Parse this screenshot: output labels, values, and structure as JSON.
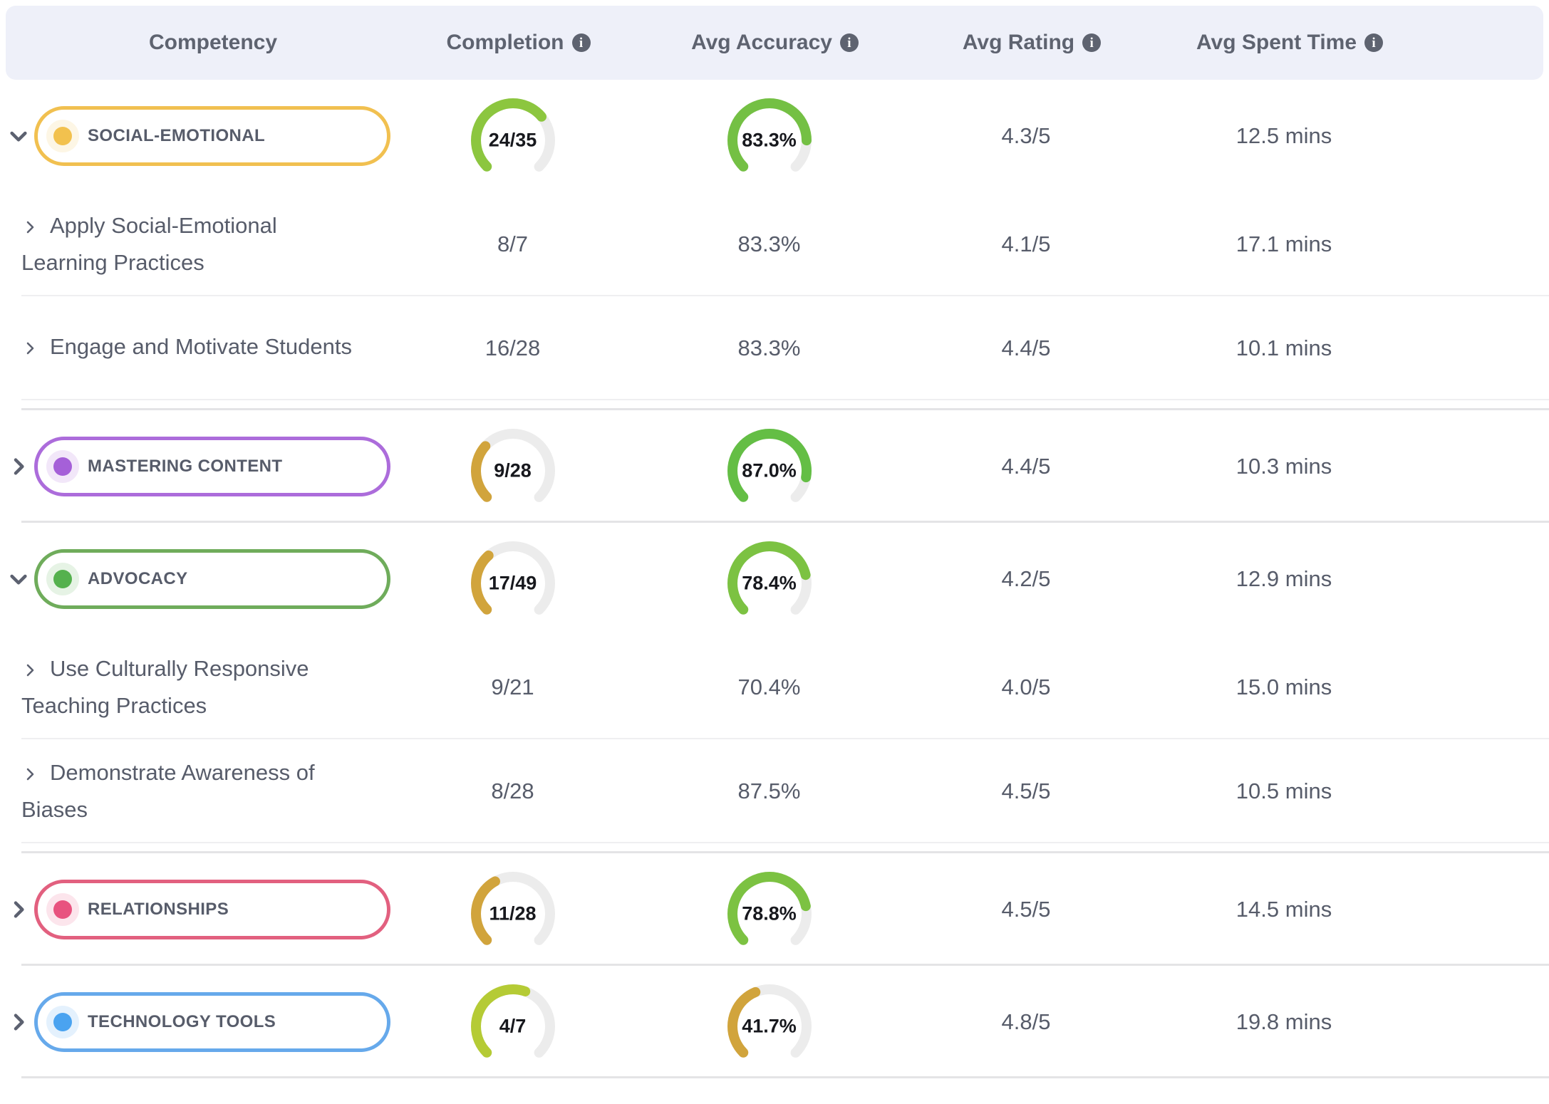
{
  "table": {
    "columns": [
      {
        "label": "Competency",
        "has_info": false
      },
      {
        "label": "Completion",
        "has_info": true
      },
      {
        "label": "Avg Accuracy",
        "has_info": true
      },
      {
        "label": "Avg Rating",
        "has_info": true
      },
      {
        "label": "Avg Spent Time",
        "has_info": true
      }
    ],
    "colors": {
      "header_bg": "#EEF0F9",
      "header_text": "#5E6370",
      "body_text": "#575C6A",
      "gauge_track": "#ECECEC",
      "gauge_green": "#74C044",
      "gauge_yellow_green": "#8CC63F",
      "gauge_lime": "#B5CB35",
      "gauge_gold": "#D1A43C"
    },
    "sections": [
      {
        "competency": {
          "label": "SOCIAL-EMOTIONAL",
          "color": "#F1C050",
          "dot_color": "#F2C14E",
          "expanded": true
        },
        "completion": {
          "text": "24/35",
          "fraction": 0.686,
          "color": "#8CC63F"
        },
        "accuracy": {
          "text": "83.3%",
          "fraction": 0.833,
          "color": "#74C044"
        },
        "rating": "4.3/5",
        "time": "12.5 mins",
        "children": [
          {
            "label": "Apply Social-Emotional Learning Practices",
            "completion": "8/7",
            "accuracy": "83.3%",
            "rating": "4.1/5",
            "time": "17.1 mins"
          },
          {
            "label": "Engage and Motivate Students",
            "completion": "16/28",
            "accuracy": "83.3%",
            "rating": "4.4/5",
            "time": "10.1 mins"
          }
        ]
      },
      {
        "competency": {
          "label": "MASTERING CONTENT",
          "color": "#AC6CDB",
          "dot_color": "#A560D8",
          "expanded": false
        },
        "completion": {
          "text": "9/28",
          "fraction": 0.321,
          "color": "#D1A43C"
        },
        "accuracy": {
          "text": "87.0%",
          "fraction": 0.87,
          "color": "#64BE45"
        },
        "rating": "4.4/5",
        "time": "10.3 mins",
        "children": []
      },
      {
        "competency": {
          "label": "ADVOCACY",
          "color": "#6FAC5B",
          "dot_color": "#55B14E",
          "expanded": true
        },
        "completion": {
          "text": "17/49",
          "fraction": 0.347,
          "color": "#D1A43C"
        },
        "accuracy": {
          "text": "78.4%",
          "fraction": 0.784,
          "color": "#7CC242"
        },
        "rating": "4.2/5",
        "time": "12.9 mins",
        "children": [
          {
            "label": "Use Culturally Responsive Teaching Practices",
            "completion": "9/21",
            "accuracy": "70.4%",
            "rating": "4.0/5",
            "time": "15.0 mins"
          },
          {
            "label": "Demonstrate Awareness of Biases",
            "completion": "8/28",
            "accuracy": "87.5%",
            "rating": "4.5/5",
            "time": "10.5 mins"
          }
        ]
      },
      {
        "competency": {
          "label": "RELATIONSHIPS",
          "color": "#E2607F",
          "dot_color": "#E8537F",
          "expanded": false
        },
        "completion": {
          "text": "11/28",
          "fraction": 0.393,
          "color": "#D1A43C"
        },
        "accuracy": {
          "text": "78.8%",
          "fraction": 0.788,
          "color": "#7CC242"
        },
        "rating": "4.5/5",
        "time": "14.5 mins",
        "children": []
      },
      {
        "competency": {
          "label": "TECHNOLOGY TOOLS",
          "color": "#66A9EB",
          "dot_color": "#4AA3F0",
          "expanded": false
        },
        "completion": {
          "text": "4/7",
          "fraction": 0.571,
          "color": "#B5CB35"
        },
        "accuracy": {
          "text": "41.7%",
          "fraction": 0.417,
          "color": "#D1A43C"
        },
        "rating": "4.8/5",
        "time": "19.8 mins",
        "children": []
      }
    ]
  }
}
